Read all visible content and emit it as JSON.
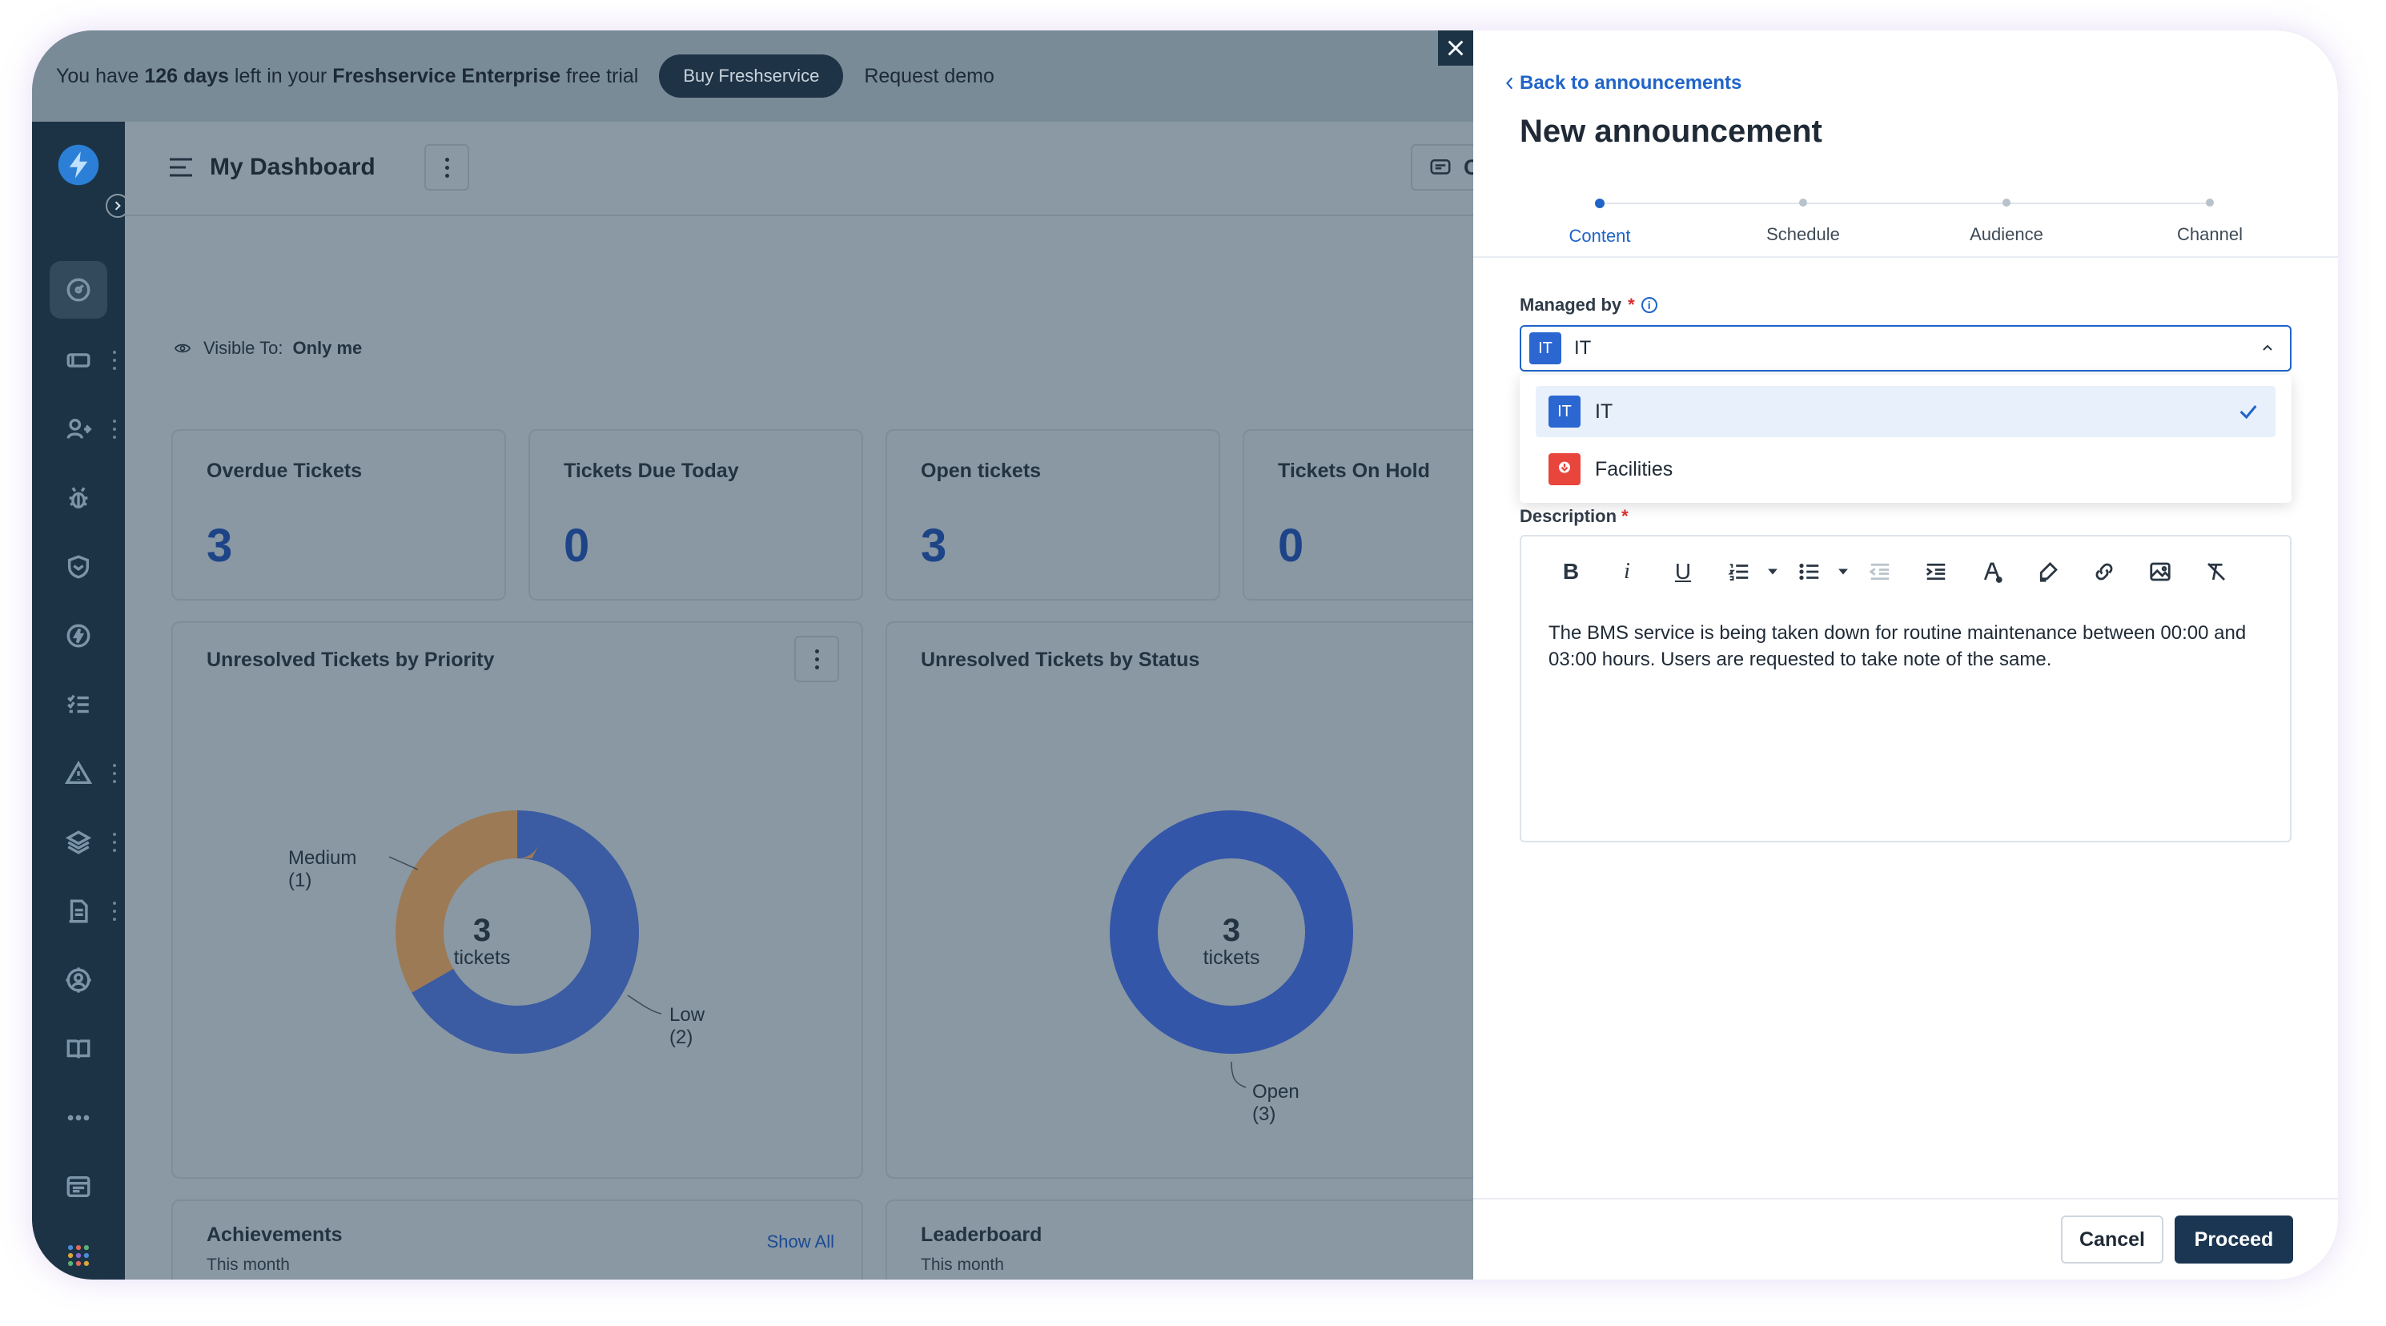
{
  "trial_banner": {
    "prefix": "You have",
    "days": "126 days",
    "middle": "left in your",
    "plan": "Freshservice Enterprise",
    "suffix": "free trial",
    "buy_label": "Buy Freshservice",
    "demo_label": "Request demo"
  },
  "sidebar": {
    "icons": [
      "bolt-logo",
      "chevron-right-icon",
      "dashboard-icon",
      "ticket-icon",
      "user-swap-icon",
      "bug-icon",
      "shield-icon",
      "lightning-icon",
      "checklist-icon",
      "warning-icon",
      "layers-icon",
      "document-icon",
      "contact-support-icon",
      "book-icon",
      "more-icon",
      "inbox-icon",
      "apps-icon"
    ]
  },
  "dashboard": {
    "title": "My Dashboard",
    "chat_label": "Cha",
    "visible_to_label": "Visible To:",
    "visible_to_value": "Only me",
    "stats": [
      {
        "title": "Overdue Tickets",
        "value": "3"
      },
      {
        "title": "Tickets Due Today",
        "value": "0"
      },
      {
        "title": "Open tickets",
        "value": "3"
      },
      {
        "title": "Tickets On Hold",
        "value": "0"
      }
    ],
    "priority_chart": {
      "title": "Unresolved Tickets by Priority",
      "center_value": "3",
      "center_label": "tickets",
      "segments": [
        {
          "label": "Medium",
          "count_label": "(1)",
          "value": 1,
          "color": "#9c7a55"
        },
        {
          "label": "Low",
          "count_label": "(2)",
          "value": 2,
          "color": "#3b5ba3"
        }
      ]
    },
    "status_chart": {
      "title": "Unresolved Tickets by Status",
      "center_value": "3",
      "center_label": "tickets",
      "segments": [
        {
          "label": "Open",
          "count_label": "(3)",
          "value": 3,
          "color": "#3456a8"
        }
      ]
    },
    "achievements": {
      "title": "Achievements",
      "subtitle": "This month",
      "link": "Show All"
    },
    "leaderboard": {
      "title": "Leaderboard",
      "subtitle": "This month"
    }
  },
  "panel": {
    "back_label": "Back to announcements",
    "title": "New announcement",
    "steps": [
      {
        "label": "Content",
        "active": true
      },
      {
        "label": "Schedule",
        "active": false
      },
      {
        "label": "Audience",
        "active": false
      },
      {
        "label": "Channel",
        "active": false
      }
    ],
    "managed_by_label": "Managed by",
    "required_mark": "*",
    "selected_badge": "IT",
    "selected_value": "IT",
    "options": [
      {
        "badge": "IT",
        "label": "IT",
        "selected": true
      },
      {
        "badge": "",
        "label": "Facilities",
        "selected": false
      }
    ],
    "description_label": "Description",
    "description_text": "The BMS service is being taken down for routine maintenance between 00:00 and 03:00 hours. Users are requested to take note of the same.",
    "toolbar": [
      "bold-icon",
      "italic-icon",
      "underline-icon",
      "ordered-list-icon",
      "caret-down-icon",
      "bullet-list-icon",
      "caret-down-icon",
      "outdent-icon",
      "indent-icon",
      "text-color-icon",
      "highlight-icon",
      "link-icon",
      "image-icon",
      "clear-format-icon"
    ],
    "cancel_label": "Cancel",
    "proceed_label": "Proceed"
  },
  "colors": {
    "accent": "#2064c8",
    "primary_button": "#1b3652",
    "sidebar_bg": "#1c3346",
    "overlay_bg": "#8a99a4",
    "facilities_badge": "#e8453c"
  }
}
